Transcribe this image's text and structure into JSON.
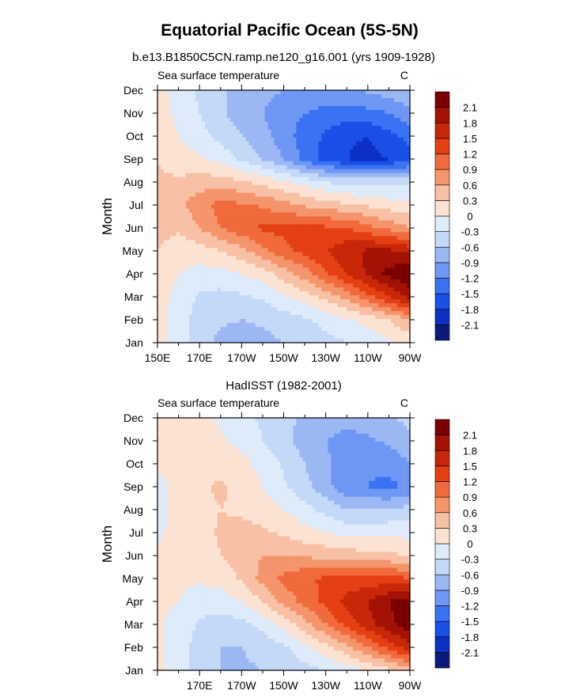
{
  "figure": {
    "title": "Equatorial Pacific Ocean (5S-5N)",
    "colorbar_levels": [
      -2.1,
      -1.8,
      -1.5,
      -1.2,
      -0.9,
      -0.6,
      -0.3,
      0,
      0.3,
      0.6,
      0.9,
      1.2,
      1.5,
      1.8,
      2.1
    ],
    "colorbar_labels": [
      "-2.1",
      "-1.8",
      "-1.5",
      "-1.2",
      "-0.9",
      "-0.6",
      "-0.3",
      "0",
      "0.3",
      "0.6",
      "0.9",
      "1.2",
      "1.5",
      "1.8",
      "2.1"
    ],
    "colorbar_colors": [
      "#0a1a7a",
      "#0c2fc4",
      "#1a4fe8",
      "#3a72f4",
      "#6f97f5",
      "#9cb8f4",
      "#c4d8f7",
      "#deebfb",
      "#fce2d2",
      "#f8c0a4",
      "#f5956c",
      "#f06a3c",
      "#e53f14",
      "#c82808",
      "#a31203",
      "#7a0000"
    ]
  },
  "chart_data": [
    {
      "type": "heatmap",
      "title": "b.e13.B1850C5CN.ramp.ne120_g16.001 (yrs 1909-1928)",
      "left_label": "Sea surface temperature",
      "right_label": "C",
      "xlabel": "",
      "ylabel": "Month",
      "x": [
        150,
        160,
        170,
        180,
        190,
        200,
        210,
        220,
        230,
        240,
        250,
        260,
        270
      ],
      "x_units": "degrees east longitude",
      "xlim": [
        150,
        270
      ],
      "x_tick_labels": [
        "150E",
        "170E",
        "170W",
        "150W",
        "130W",
        "110W",
        "90W"
      ],
      "y_tick_labels": [
        "Jan",
        "Feb",
        "Mar",
        "Apr",
        "May",
        "Jun",
        "Jul",
        "Aug",
        "Sep",
        "Oct",
        "Nov",
        "Dec"
      ],
      "colorbar_labels": [
        "-2.1",
        "-1.8",
        "-1.5",
        "-1.2",
        "-0.9",
        "-0.6",
        "-0.3",
        "0",
        "0.3",
        "0.6",
        "0.9",
        "1.2",
        "1.5",
        "1.8",
        "2.1"
      ],
      "z": [
        [
          0.15,
          -0.2,
          -0.4,
          -0.7,
          -0.75,
          -0.7,
          -0.6,
          -0.5,
          -0.4,
          -0.3,
          -0.2,
          -0.05,
          0.1
        ],
        [
          0.15,
          -0.2,
          -0.4,
          -0.55,
          -0.6,
          -0.55,
          -0.45,
          -0.35,
          -0.2,
          -0.05,
          0.1,
          0.3,
          0.6
        ],
        [
          0.15,
          -0.1,
          -0.35,
          -0.4,
          -0.35,
          -0.25,
          -0.05,
          0.15,
          0.4,
          0.7,
          1.1,
          1.5,
          1.9
        ],
        [
          0.2,
          0.0,
          -0.1,
          -0.1,
          0.0,
          0.15,
          0.45,
          0.75,
          1.15,
          1.5,
          1.85,
          2.2,
          2.4
        ],
        [
          0.3,
          0.15,
          0.15,
          0.3,
          0.5,
          0.8,
          1.1,
          1.3,
          1.5,
          1.7,
          1.85,
          1.85,
          1.7
        ],
        [
          0.4,
          0.35,
          0.6,
          0.9,
          1.1,
          1.25,
          1.3,
          1.3,
          1.25,
          1.2,
          1.0,
          0.8,
          0.6
        ],
        [
          0.4,
          0.5,
          0.8,
          1.0,
          0.95,
          0.85,
          0.7,
          0.55,
          0.45,
          0.35,
          0.25,
          0.15,
          0.1
        ],
        [
          0.35,
          0.35,
          0.45,
          0.45,
          0.35,
          0.2,
          0.05,
          -0.1,
          -0.3,
          -0.4,
          -0.4,
          -0.4,
          -0.4
        ],
        [
          0.3,
          0.15,
          0.05,
          -0.1,
          -0.35,
          -0.6,
          -0.9,
          -1.3,
          -1.6,
          -1.8,
          -1.9,
          -1.8,
          -1.6
        ],
        [
          0.25,
          0.0,
          -0.2,
          -0.4,
          -0.6,
          -0.8,
          -1.05,
          -1.35,
          -1.55,
          -1.75,
          -1.8,
          -1.6,
          -1.4
        ],
        [
          0.2,
          -0.1,
          -0.3,
          -0.55,
          -0.75,
          -0.9,
          -1.1,
          -1.2,
          -1.3,
          -1.35,
          -1.3,
          -1.2,
          -1.0
        ],
        [
          0.15,
          -0.15,
          -0.35,
          -0.55,
          -0.7,
          -0.8,
          -0.9,
          -0.95,
          -1.0,
          -0.95,
          -0.85,
          -0.75,
          -0.6
        ]
      ],
      "z_units": "C"
    },
    {
      "type": "heatmap",
      "title": "HadISST (1982-2001)",
      "left_label": "Sea surface temperature",
      "right_label": "C",
      "xlabel": "",
      "ylabel": "Month",
      "x": [
        150,
        160,
        170,
        180,
        190,
        200,
        210,
        220,
        230,
        240,
        250,
        260,
        270
      ],
      "x_units": "degrees east longitude",
      "xlim": [
        150,
        270
      ],
      "x_tick_labels": [
        "170E",
        "170W",
        "150W",
        "130W",
        "110W",
        "90W"
      ],
      "y_tick_labels": [
        "Jan",
        "Feb",
        "Mar",
        "Apr",
        "May",
        "Jun",
        "Jul",
        "Aug",
        "Sep",
        "Oct",
        "Nov",
        "Dec"
      ],
      "colorbar_labels": [
        "2.1",
        "1.8",
        "1.5",
        "1.2",
        "0.9",
        "0.6",
        "0.3",
        "0",
        "-0.3",
        "-0.6",
        "-0.9",
        "-1.2",
        "-1.5",
        "-1.8",
        "-2.1"
      ],
      "z": [
        [
          0.1,
          -0.15,
          -0.45,
          -0.6,
          -0.65,
          -0.6,
          -0.5,
          -0.4,
          -0.3,
          -0.15,
          0.0,
          0.2,
          0.5
        ],
        [
          0.05,
          -0.15,
          -0.45,
          -0.6,
          -0.6,
          -0.5,
          -0.35,
          -0.1,
          0.2,
          0.5,
          0.9,
          1.3,
          1.7
        ],
        [
          0.05,
          -0.1,
          -0.35,
          -0.45,
          -0.4,
          -0.2,
          0.1,
          0.5,
          0.9,
          1.3,
          1.7,
          2.0,
          2.3
        ],
        [
          0.05,
          0.0,
          -0.15,
          -0.15,
          0.0,
          0.3,
          0.7,
          1.0,
          1.3,
          1.6,
          1.8,
          2.1,
          2.3
        ],
        [
          0.05,
          0.05,
          0.05,
          0.1,
          0.35,
          0.7,
          1.0,
          1.15,
          1.25,
          1.3,
          1.3,
          1.3,
          1.2
        ],
        [
          0.05,
          0.1,
          0.15,
          0.3,
          0.45,
          0.6,
          0.6,
          0.55,
          0.5,
          0.45,
          0.4,
          0.35,
          0.3
        ],
        [
          -0.05,
          0.1,
          0.15,
          0.35,
          0.4,
          0.35,
          0.25,
          0.1,
          0.0,
          -0.1,
          -0.1,
          -0.1,
          -0.1
        ],
        [
          -0.1,
          0.1,
          0.2,
          0.3,
          0.25,
          0.15,
          0.0,
          -0.2,
          -0.4,
          -0.6,
          -0.6,
          -0.55,
          -0.5
        ],
        [
          -0.1,
          0.1,
          0.25,
          0.35,
          0.2,
          0.0,
          -0.25,
          -0.5,
          -0.8,
          -1.1,
          -1.2,
          -1.3,
          -1.1
        ],
        [
          0.05,
          0.1,
          0.2,
          0.2,
          0.1,
          -0.1,
          -0.35,
          -0.6,
          -0.85,
          -1.05,
          -1.15,
          -1.1,
          -0.9
        ],
        [
          0.1,
          0.1,
          0.15,
          0.05,
          -0.1,
          -0.3,
          -0.5,
          -0.75,
          -0.9,
          -1.0,
          -0.95,
          -0.85,
          -0.7
        ],
        [
          0.1,
          0.1,
          0.1,
          -0.05,
          -0.2,
          -0.35,
          -0.5,
          -0.65,
          -0.75,
          -0.8,
          -0.75,
          -0.65,
          -0.5
        ]
      ],
      "z_units": "C"
    }
  ]
}
